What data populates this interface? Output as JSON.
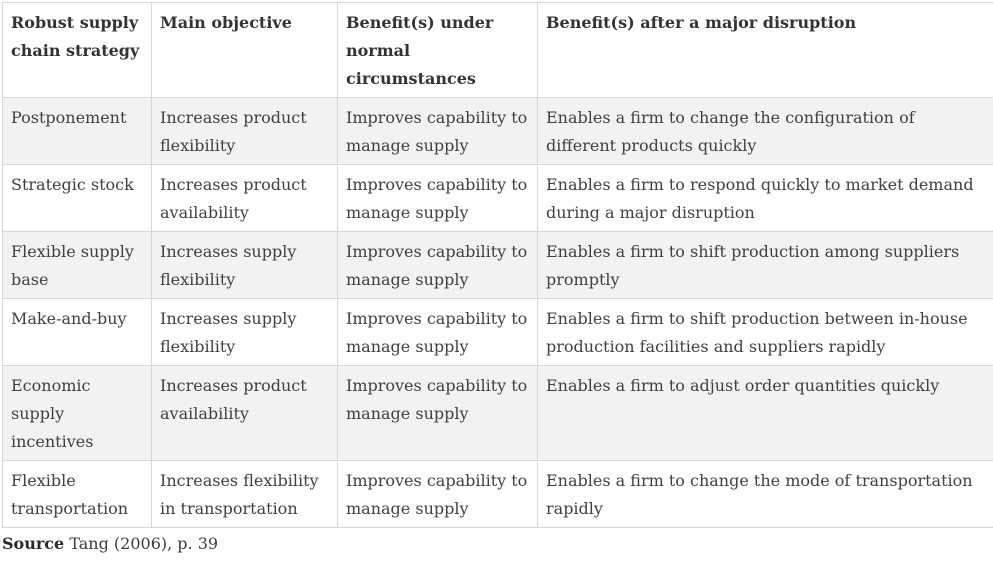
{
  "table": {
    "headers": [
      "Robust supply chain strategy",
      "Main objective",
      "Benefit(s) under normal circumstances",
      "Benefit(s) after a major disruption"
    ],
    "rows": [
      [
        "Postponement",
        "Increases product flexibility",
        "Improves capability to manage supply",
        "Enables a firm to change the configuration of different products quickly"
      ],
      [
        "Strategic stock",
        "Increases product availability",
        "Improves capability to manage supply",
        "Enables a firm to respond quickly to market demand during a major disruption"
      ],
      [
        "Flexible supply base",
        "Increases supply flexibility",
        "Improves capability to manage supply",
        "Enables a firm to shift production among suppliers promptly"
      ],
      [
        "Make-and-buy",
        "Increases supply flexibility",
        "Improves capability to manage supply",
        "Enables a firm to shift production between in-house production facilities and suppliers rapidly"
      ],
      [
        "Economic supply incentives",
        "Increases product availability",
        "Improves capability to manage supply",
        "Enables a firm to adjust order quantities quickly"
      ],
      [
        "Flexible transportation",
        "Increases flexibility in transportation",
        "Improves capability to manage supply",
        "Enables a firm to change the mode of transportation rapidly"
      ]
    ]
  },
  "source": {
    "label": "Source",
    "text": "Tang (2006), p. 39"
  }
}
